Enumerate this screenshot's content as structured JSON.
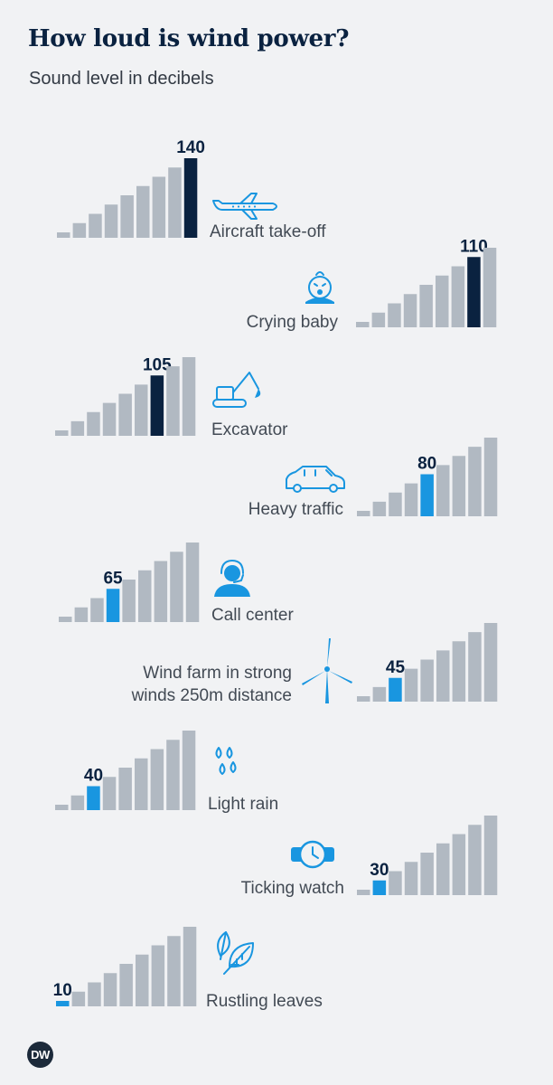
{
  "title": "How loud is wind power?",
  "subtitle": "Sound level in decibels",
  "logo": "DW",
  "colors": {
    "background": "#f1f2f4",
    "bar_inactive": "#b1b9c2",
    "bar_loud": "#0a2240",
    "bar_quiet": "#1996e0",
    "label": "#424a54",
    "value_label": "#0a2240"
  },
  "chart_data": {
    "type": "bar",
    "unit": "dB",
    "categories": [
      "Aircraft take-off",
      "Crying baby",
      "Excavator",
      "Heavy traffic",
      "Call center",
      "Wind farm in strong winds 250m distance",
      "Light rain",
      "Ticking watch",
      "Rustling leaves"
    ],
    "label_lines": [
      [
        "Aircraft take-off"
      ],
      [
        "Crying baby"
      ],
      [
        "Excavator"
      ],
      [
        "Heavy traffic"
      ],
      [
        "Call center"
      ],
      [
        "Wind farm in strong",
        "winds 250m distance"
      ],
      [
        "Light rain"
      ],
      [
        "Ticking watch"
      ],
      [
        "Rustling leaves"
      ]
    ],
    "icons": [
      "airplane-icon",
      "baby-icon",
      "excavator-icon",
      "car-icon",
      "headset-person-icon",
      "wind-turbine-icon",
      "raindrops-icon",
      "watch-icon",
      "leaves-icon"
    ],
    "values": [
      140,
      110,
      105,
      80,
      65,
      45,
      40,
      30,
      10
    ],
    "value_labels": [
      "140",
      "110",
      "105",
      "80",
      "65",
      "45",
      "40",
      "30",
      "10"
    ],
    "highlight_step": [
      9,
      8,
      7,
      5,
      4,
      3,
      3,
      2,
      1
    ],
    "highlight_color": [
      "bar_loud",
      "bar_loud",
      "bar_loud",
      "bar_quiet",
      "bar_quiet",
      "bar_quiet",
      "bar_quiet",
      "bar_quiet",
      "bar_quiet"
    ],
    "steps_per_group": 9,
    "grid": false
  }
}
